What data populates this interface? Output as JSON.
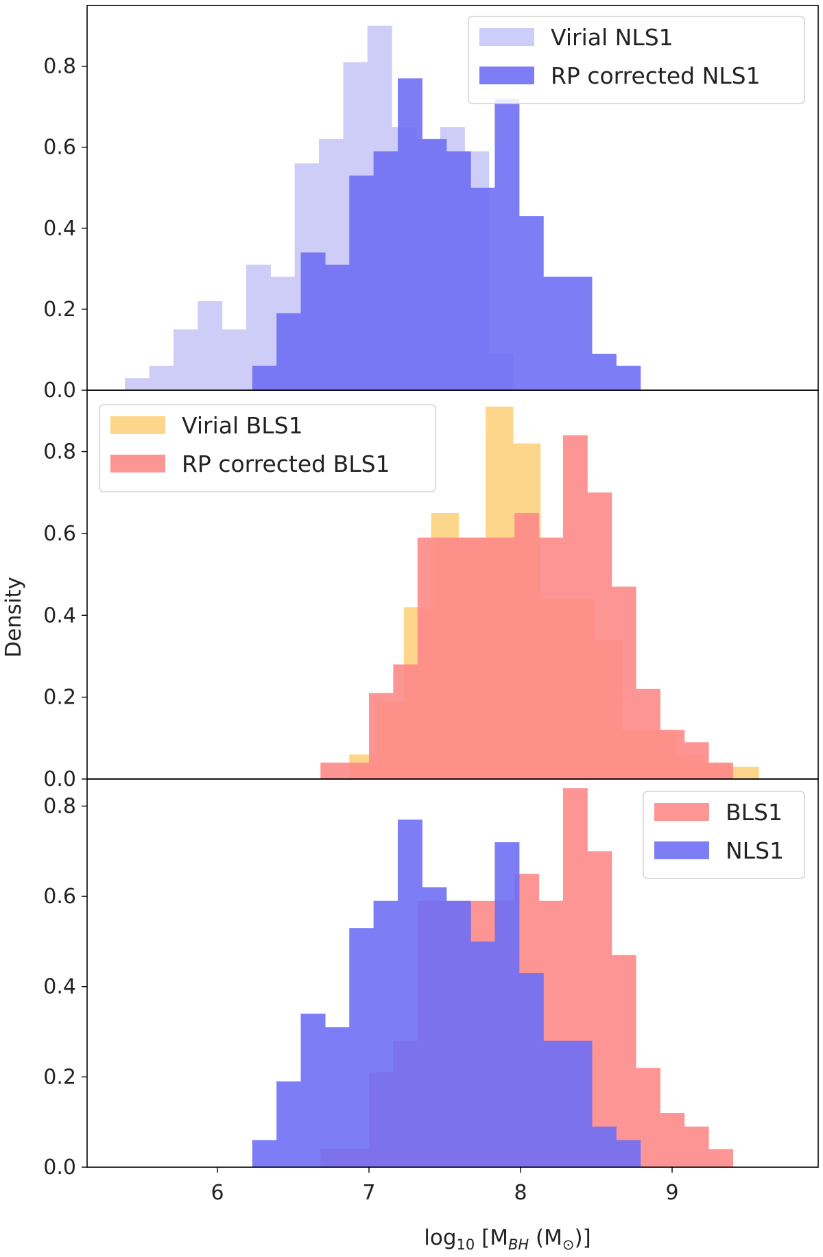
{
  "figure": {
    "ylabel": "Density",
    "xlabel": "log₁₀ [M_BH (M_⊙)]",
    "x_ticks": [
      6,
      7,
      8,
      9
    ]
  },
  "chart_data": [
    {
      "type": "histogram",
      "panel": "top",
      "ylim": [
        0,
        0.95
      ],
      "y_ticks": [
        "0.0",
        "0.2",
        "0.4",
        "0.6",
        "0.8"
      ],
      "legend_position": "top-right",
      "series": [
        {
          "name": "Virial NLS1",
          "color": "#c8c8f8",
          "bins": [
            {
              "x0": 5.39,
              "x1": 5.55,
              "y": 0.03
            },
            {
              "x0": 5.55,
              "x1": 5.71,
              "y": 0.06
            },
            {
              "x0": 5.71,
              "x1": 5.87,
              "y": 0.15
            },
            {
              "x0": 5.87,
              "x1": 6.03,
              "y": 0.22
            },
            {
              "x0": 6.03,
              "x1": 6.19,
              "y": 0.15
            },
            {
              "x0": 6.19,
              "x1": 6.35,
              "y": 0.31
            },
            {
              "x0": 6.35,
              "x1": 6.51,
              "y": 0.28
            },
            {
              "x0": 6.51,
              "x1": 6.67,
              "y": 0.56
            },
            {
              "x0": 6.67,
              "x1": 6.83,
              "y": 0.62
            },
            {
              "x0": 6.83,
              "x1": 6.99,
              "y": 0.81
            },
            {
              "x0": 6.99,
              "x1": 7.15,
              "y": 0.9
            },
            {
              "x0": 7.15,
              "x1": 7.31,
              "y": 0.65
            },
            {
              "x0": 7.31,
              "x1": 7.47,
              "y": 0.62
            },
            {
              "x0": 7.47,
              "x1": 7.63,
              "y": 0.65
            },
            {
              "x0": 7.63,
              "x1": 7.79,
              "y": 0.59
            },
            {
              "x0": 7.79,
              "x1": 7.95,
              "y": 0.09
            }
          ]
        },
        {
          "name": "RP corrected NLS1",
          "color": "#6f6ff5",
          "bins": [
            {
              "x0": 6.23,
              "x1": 6.39,
              "y": 0.06
            },
            {
              "x0": 6.39,
              "x1": 6.55,
              "y": 0.19
            },
            {
              "x0": 6.55,
              "x1": 6.71,
              "y": 0.34
            },
            {
              "x0": 6.71,
              "x1": 6.87,
              "y": 0.31
            },
            {
              "x0": 6.87,
              "x1": 7.03,
              "y": 0.53
            },
            {
              "x0": 7.03,
              "x1": 7.19,
              "y": 0.59
            },
            {
              "x0": 7.19,
              "x1": 7.35,
              "y": 0.77
            },
            {
              "x0": 7.35,
              "x1": 7.51,
              "y": 0.62
            },
            {
              "x0": 7.51,
              "x1": 7.67,
              "y": 0.59
            },
            {
              "x0": 7.67,
              "x1": 7.83,
              "y": 0.5
            },
            {
              "x0": 7.83,
              "x1": 7.99,
              "y": 0.72
            },
            {
              "x0": 7.99,
              "x1": 8.15,
              "y": 0.43
            },
            {
              "x0": 8.15,
              "x1": 8.31,
              "y": 0.28
            },
            {
              "x0": 8.31,
              "x1": 8.47,
              "y": 0.28
            },
            {
              "x0": 8.47,
              "x1": 8.63,
              "y": 0.09
            },
            {
              "x0": 8.63,
              "x1": 8.79,
              "y": 0.06
            }
          ]
        }
      ]
    },
    {
      "type": "histogram",
      "panel": "middle",
      "ylim": [
        0,
        0.95
      ],
      "y_ticks": [
        "0.0",
        "0.2",
        "0.4",
        "0.6",
        "0.8"
      ],
      "legend_position": "top-left",
      "series": [
        {
          "name": "Virial BLS1",
          "color": "#fdd17f",
          "bins": [
            {
              "x0": 6.87,
              "x1": 7.05,
              "y": 0.06
            },
            {
              "x0": 7.05,
              "x1": 7.23,
              "y": 0.19
            },
            {
              "x0": 7.23,
              "x1": 7.41,
              "y": 0.42
            },
            {
              "x0": 7.41,
              "x1": 7.59,
              "y": 0.65
            },
            {
              "x0": 7.59,
              "x1": 7.77,
              "y": 0.59
            },
            {
              "x0": 7.77,
              "x1": 7.95,
              "y": 0.91
            },
            {
              "x0": 7.95,
              "x1": 8.13,
              "y": 0.82
            },
            {
              "x0": 8.13,
              "x1": 8.31,
              "y": 0.44
            },
            {
              "x0": 8.31,
              "x1": 8.49,
              "y": 0.44
            },
            {
              "x0": 8.49,
              "x1": 8.67,
              "y": 0.34
            },
            {
              "x0": 8.67,
              "x1": 8.85,
              "y": 0.12
            },
            {
              "x0": 8.85,
              "x1": 9.03,
              "y": 0.12
            },
            {
              "x0": 9.03,
              "x1": 9.21,
              "y": 0.06
            },
            {
              "x0": 9.21,
              "x1": 9.39,
              "y": 0.04
            },
            {
              "x0": 9.39,
              "x1": 9.57,
              "y": 0.03
            }
          ]
        },
        {
          "name": "RP corrected BLS1",
          "color": "#fe8a8a",
          "bins": [
            {
              "x0": 6.68,
              "x1": 6.84,
              "y": 0.04
            },
            {
              "x0": 6.84,
              "x1": 7.0,
              "y": 0.04
            },
            {
              "x0": 7.0,
              "x1": 7.16,
              "y": 0.21
            },
            {
              "x0": 7.16,
              "x1": 7.32,
              "y": 0.28
            },
            {
              "x0": 7.32,
              "x1": 7.48,
              "y": 0.59
            },
            {
              "x0": 7.48,
              "x1": 7.64,
              "y": 0.59
            },
            {
              "x0": 7.64,
              "x1": 7.8,
              "y": 0.59
            },
            {
              "x0": 7.8,
              "x1": 7.96,
              "y": 0.59
            },
            {
              "x0": 7.96,
              "x1": 8.12,
              "y": 0.65
            },
            {
              "x0": 8.12,
              "x1": 8.28,
              "y": 0.59
            },
            {
              "x0": 8.28,
              "x1": 8.44,
              "y": 0.84
            },
            {
              "x0": 8.44,
              "x1": 8.6,
              "y": 0.7
            },
            {
              "x0": 8.6,
              "x1": 8.76,
              "y": 0.47
            },
            {
              "x0": 8.76,
              "x1": 8.92,
              "y": 0.22
            },
            {
              "x0": 8.92,
              "x1": 9.08,
              "y": 0.12
            },
            {
              "x0": 9.08,
              "x1": 9.24,
              "y": 0.09
            },
            {
              "x0": 9.24,
              "x1": 9.4,
              "y": 0.04
            }
          ]
        }
      ]
    },
    {
      "type": "histogram",
      "panel": "bottom",
      "ylim": [
        0,
        0.86
      ],
      "y_ticks": [
        "0.0",
        "0.2",
        "0.4",
        "0.6",
        "0.8"
      ],
      "legend_position": "top-right",
      "series": [
        {
          "name": "BLS1",
          "color": "#fe8a8a",
          "bins": [
            {
              "x0": 6.68,
              "x1": 6.84,
              "y": 0.04
            },
            {
              "x0": 6.84,
              "x1": 7.0,
              "y": 0.04
            },
            {
              "x0": 7.0,
              "x1": 7.16,
              "y": 0.21
            },
            {
              "x0": 7.16,
              "x1": 7.32,
              "y": 0.28
            },
            {
              "x0": 7.32,
              "x1": 7.48,
              "y": 0.59
            },
            {
              "x0": 7.48,
              "x1": 7.64,
              "y": 0.59
            },
            {
              "x0": 7.64,
              "x1": 7.8,
              "y": 0.59
            },
            {
              "x0": 7.8,
              "x1": 7.96,
              "y": 0.59
            },
            {
              "x0": 7.96,
              "x1": 8.12,
              "y": 0.65
            },
            {
              "x0": 8.12,
              "x1": 8.28,
              "y": 0.59
            },
            {
              "x0": 8.28,
              "x1": 8.44,
              "y": 0.84
            },
            {
              "x0": 8.44,
              "x1": 8.6,
              "y": 0.7
            },
            {
              "x0": 8.6,
              "x1": 8.76,
              "y": 0.47
            },
            {
              "x0": 8.76,
              "x1": 8.92,
              "y": 0.22
            },
            {
              "x0": 8.92,
              "x1": 9.08,
              "y": 0.12
            },
            {
              "x0": 9.08,
              "x1": 9.24,
              "y": 0.09
            },
            {
              "x0": 9.24,
              "x1": 9.4,
              "y": 0.04
            }
          ]
        },
        {
          "name": "NLS1",
          "color": "#6f6ff5",
          "bins": [
            {
              "x0": 6.23,
              "x1": 6.39,
              "y": 0.06
            },
            {
              "x0": 6.39,
              "x1": 6.55,
              "y": 0.19
            },
            {
              "x0": 6.55,
              "x1": 6.71,
              "y": 0.34
            },
            {
              "x0": 6.71,
              "x1": 6.87,
              "y": 0.31
            },
            {
              "x0": 6.87,
              "x1": 7.03,
              "y": 0.53
            },
            {
              "x0": 7.03,
              "x1": 7.19,
              "y": 0.59
            },
            {
              "x0": 7.19,
              "x1": 7.35,
              "y": 0.77
            },
            {
              "x0": 7.35,
              "x1": 7.51,
              "y": 0.62
            },
            {
              "x0": 7.51,
              "x1": 7.67,
              "y": 0.59
            },
            {
              "x0": 7.67,
              "x1": 7.83,
              "y": 0.5
            },
            {
              "x0": 7.83,
              "x1": 7.99,
              "y": 0.72
            },
            {
              "x0": 7.99,
              "x1": 8.15,
              "y": 0.43
            },
            {
              "x0": 8.15,
              "x1": 8.31,
              "y": 0.28
            },
            {
              "x0": 8.31,
              "x1": 8.47,
              "y": 0.28
            },
            {
              "x0": 8.47,
              "x1": 8.63,
              "y": 0.09
            },
            {
              "x0": 8.63,
              "x1": 8.79,
              "y": 0.06
            }
          ]
        }
      ]
    }
  ]
}
